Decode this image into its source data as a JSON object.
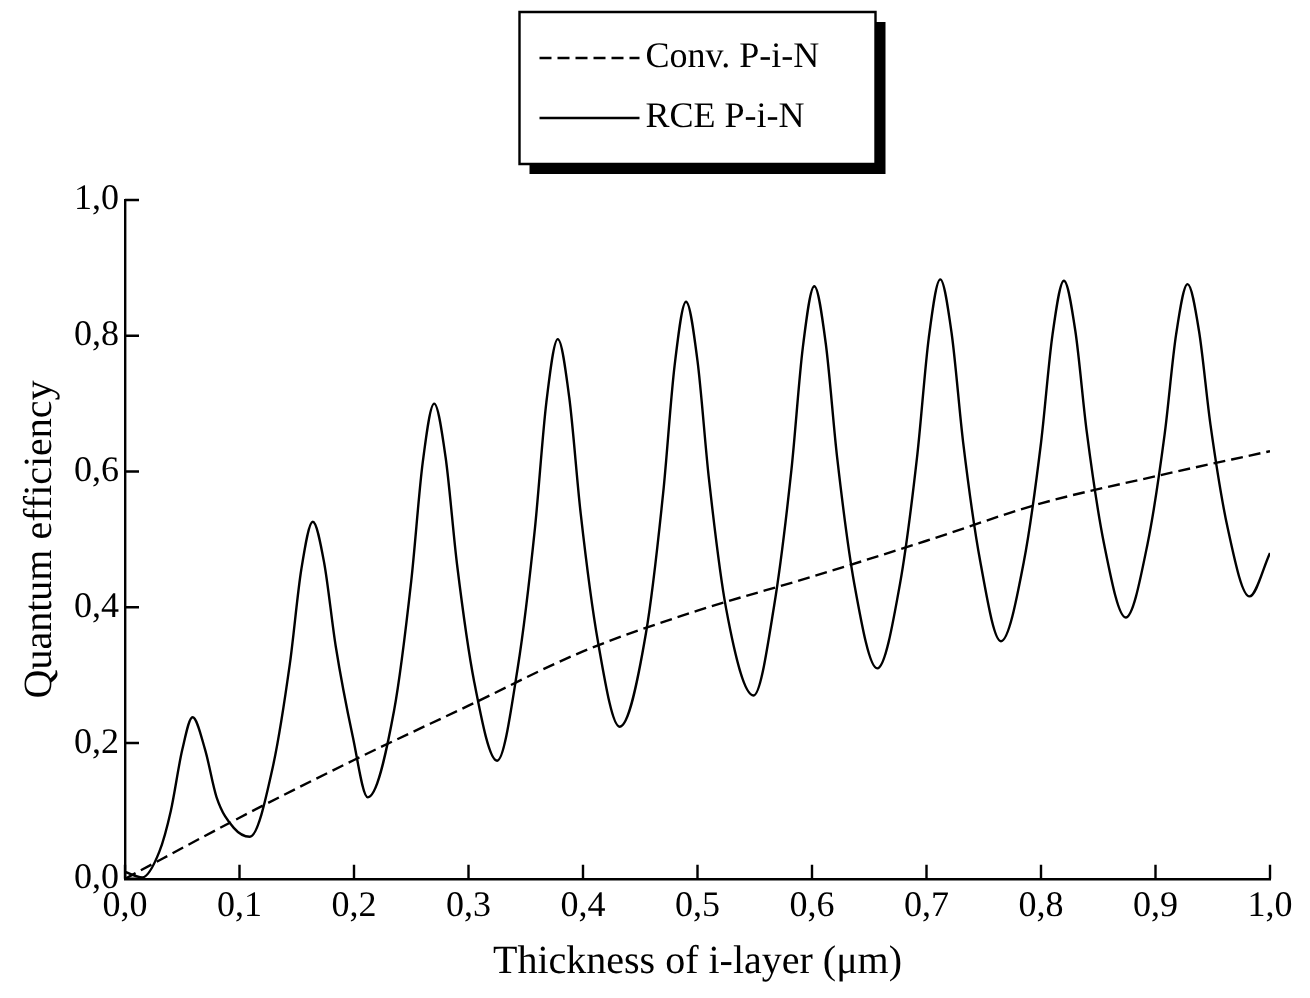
{
  "chart_data": {
    "type": "line",
    "xlabel": "Thickness of i-layer (μm)",
    "ylabel": "Quantum efficiency",
    "xlim": [
      0,
      1
    ],
    "ylim": [
      0,
      1
    ],
    "xticks": [
      {
        "value": 0,
        "label": "0,0"
      },
      {
        "value": 0.1,
        "label": "0,1"
      },
      {
        "value": 0.2,
        "label": "0,2"
      },
      {
        "value": 0.3,
        "label": "0,3"
      },
      {
        "value": 0.4,
        "label": "0,4"
      },
      {
        "value": 0.5,
        "label": "0,5"
      },
      {
        "value": 0.6,
        "label": "0,6"
      },
      {
        "value": 0.7,
        "label": "0,7"
      },
      {
        "value": 0.8,
        "label": "0,8"
      },
      {
        "value": 0.9,
        "label": "0,9"
      },
      {
        "value": 1,
        "label": "1,0"
      }
    ],
    "yticks": [
      {
        "value": 0,
        "label": "0,0"
      },
      {
        "value": 0.2,
        "label": "0,2"
      },
      {
        "value": 0.4,
        "label": "0,4"
      },
      {
        "value": 0.6,
        "label": "0,6"
      },
      {
        "value": 0.8,
        "label": "0,8"
      },
      {
        "value": 1,
        "label": "1,0"
      }
    ],
    "grid": false,
    "legend": "top",
    "marker": "none",
    "series": [
      {
        "name": "Conv. P-i-N",
        "color": "#000000",
        "line_style": "dashed",
        "x": [
          0,
          0.1,
          0.2,
          0.3,
          0.4,
          0.5,
          0.6,
          0.7,
          0.8,
          0.9,
          1.0
        ],
        "values": [
          0,
          0.09,
          0.175,
          0.255,
          0.335,
          0.395,
          0.445,
          0.498,
          0.553,
          0.593,
          0.63
        ]
      },
      {
        "name": "RCE P-i-N",
        "color": "#000000",
        "line_style": "solid",
        "x": [
          0,
          0.015,
          0.03,
          0.04,
          0.05,
          0.059,
          0.07,
          0.08,
          0.095,
          0.109,
          0.129,
          0.144,
          0.154,
          0.164,
          0.174,
          0.184,
          0.199,
          0.212,
          0.235,
          0.25,
          0.26,
          0.27,
          0.28,
          0.29,
          0.305,
          0.325,
          0.343,
          0.358,
          0.368,
          0.378,
          0.388,
          0.398,
          0.413,
          0.432,
          0.455,
          0.47,
          0.48,
          0.49,
          0.5,
          0.51,
          0.525,
          0.549,
          0.567,
          0.582,
          0.592,
          0.602,
          0.612,
          0.622,
          0.637,
          0.657,
          0.677,
          0.692,
          0.702,
          0.712,
          0.722,
          0.732,
          0.747,
          0.765,
          0.785,
          0.8,
          0.81,
          0.82,
          0.83,
          0.84,
          0.855,
          0.874,
          0.893,
          0.908,
          0.918,
          0.928,
          0.938,
          0.948,
          0.963,
          0.982,
          1.0
        ],
        "values": [
          0.01,
          0.002,
          0.04,
          0.1,
          0.19,
          0.238,
          0.19,
          0.12,
          0.075,
          0.062,
          0.164,
          0.317,
          0.456,
          0.526,
          0.465,
          0.343,
          0.209,
          0.12,
          0.248,
          0.439,
          0.613,
          0.7,
          0.621,
          0.463,
          0.29,
          0.174,
          0.311,
          0.516,
          0.702,
          0.795,
          0.709,
          0.538,
          0.35,
          0.224,
          0.362,
          0.568,
          0.756,
          0.85,
          0.763,
          0.589,
          0.398,
          0.27,
          0.403,
          0.602,
          0.783,
          0.873,
          0.789,
          0.62,
          0.434,
          0.31,
          0.436,
          0.625,
          0.797,
          0.883,
          0.803,
          0.643,
          0.467,
          0.35,
          0.467,
          0.642,
          0.801,
          0.881,
          0.807,
          0.658,
          0.494,
          0.385,
          0.493,
          0.655,
          0.802,
          0.876,
          0.807,
          0.669,
          0.517,
          0.416,
          0.48
        ]
      }
    ]
  }
}
